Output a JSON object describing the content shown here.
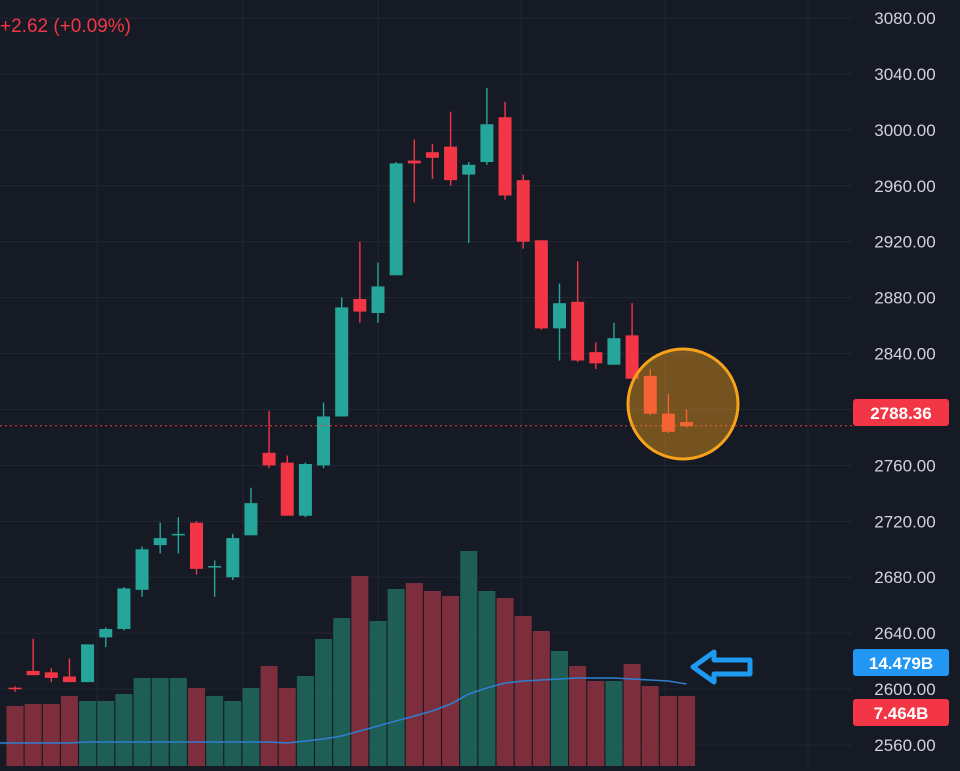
{
  "header": {
    "change_text": "+2.62 (+0.09%)"
  },
  "colors": {
    "background": "#161a25",
    "grid": "#232735",
    "up": "#26a69a",
    "down": "#f23645",
    "volume_up": "#1e5e55",
    "volume_down": "#7d2e3c",
    "ma_line": "#2f7fd0",
    "price_line": "#f23645",
    "annotation_circle": "#f7a21b",
    "annotation_arrow": "#1e9bf0",
    "volume_ma_tag": "#2196f3",
    "volume_tag": "#f23645",
    "axis_text": "#d1d4dc"
  },
  "chart_data": {
    "type": "candlestick",
    "y_axis_side": "right",
    "ylim": [
      2545,
      3090
    ],
    "y_ticks": [
      "3080.00",
      "3040.00",
      "3000.00",
      "2960.00",
      "2920.00",
      "2880.00",
      "2840.00",
      "2800.00",
      "2760.00",
      "2720.00",
      "2680.00",
      "2640.00",
      "2600.00",
      "2560.00"
    ],
    "last_price": "2788.36",
    "volume_ma_label": "14.479B",
    "volume_label": "7.464B",
    "candles": [
      {
        "o": 2601,
        "h": 2602,
        "l": 2598,
        "c": 2600
      },
      {
        "o": 2613,
        "h": 2636,
        "l": 2610,
        "c": 2610
      },
      {
        "o": 2612,
        "h": 2615,
        "l": 2605,
        "c": 2608
      },
      {
        "o": 2609,
        "h": 2622,
        "l": 2606,
        "c": 2605
      },
      {
        "o": 2605,
        "h": 2629,
        "l": 2606,
        "c": 2632
      },
      {
        "o": 2637,
        "h": 2644,
        "l": 2630,
        "c": 2643
      },
      {
        "o": 2643,
        "h": 2673,
        "l": 2642,
        "c": 2672
      },
      {
        "o": 2671,
        "h": 2702,
        "l": 2666,
        "c": 2700
      },
      {
        "o": 2703,
        "h": 2719,
        "l": 2697,
        "c": 2708
      },
      {
        "o": 2710,
        "h": 2723,
        "l": 2697,
        "c": 2711
      },
      {
        "o": 2719,
        "h": 2720,
        "l": 2682,
        "c": 2686
      },
      {
        "o": 2687,
        "h": 2692,
        "l": 2666,
        "c": 2688
      },
      {
        "o": 2680,
        "h": 2711,
        "l": 2678,
        "c": 2708
      },
      {
        "o": 2710,
        "h": 2744,
        "l": 2710,
        "c": 2733
      },
      {
        "o": 2769,
        "h": 2799,
        "l": 2758,
        "c": 2760
      },
      {
        "o": 2762,
        "h": 2767,
        "l": 2724,
        "c": 2724
      },
      {
        "o": 2724,
        "h": 2762,
        "l": 2723,
        "c": 2761
      },
      {
        "o": 2760,
        "h": 2805,
        "l": 2758,
        "c": 2795
      },
      {
        "o": 2795,
        "h": 2880,
        "l": 2795,
        "c": 2873
      },
      {
        "o": 2879,
        "h": 2920,
        "l": 2862,
        "c": 2870
      },
      {
        "o": 2869,
        "h": 2905,
        "l": 2862,
        "c": 2888
      },
      {
        "o": 2896,
        "h": 2977,
        "l": 2896,
        "c": 2976
      },
      {
        "o": 2978,
        "h": 2993,
        "l": 2948,
        "c": 2976
      },
      {
        "o": 2984,
        "h": 2990,
        "l": 2965,
        "c": 2980
      },
      {
        "o": 2988,
        "h": 3013,
        "l": 2960,
        "c": 2964
      },
      {
        "o": 2968,
        "h": 2977,
        "l": 2919,
        "c": 2975
      },
      {
        "o": 2977,
        "h": 3030,
        "l": 2975,
        "c": 3004
      },
      {
        "o": 3009,
        "h": 3020,
        "l": 2950,
        "c": 2953
      },
      {
        "o": 2964,
        "h": 2968,
        "l": 2915,
        "c": 2920
      },
      {
        "o": 2921,
        "h": 2921,
        "l": 2857,
        "c": 2858
      },
      {
        "o": 2858,
        "h": 2890,
        "l": 2835,
        "c": 2876
      },
      {
        "o": 2877,
        "h": 2906,
        "l": 2834,
        "c": 2835
      },
      {
        "o": 2841,
        "h": 2848,
        "l": 2829,
        "c": 2833
      },
      {
        "o": 2832,
        "h": 2862,
        "l": 2832,
        "c": 2851
      },
      {
        "o": 2853,
        "h": 2876,
        "l": 2822,
        "c": 2822
      },
      {
        "o": 2824,
        "h": 2829,
        "l": 2796,
        "c": 2797
      },
      {
        "o": 2797,
        "h": 2811,
        "l": 2783,
        "c": 2784
      },
      {
        "o": 2791,
        "h": 2800,
        "l": 2787,
        "c": 2788
      }
    ],
    "volume_heights": [
      60,
      62,
      62,
      70,
      65,
      65,
      72,
      88,
      88,
      88,
      78,
      70,
      65,
      78,
      100,
      78,
      90,
      127,
      148,
      190,
      145,
      177,
      183,
      175,
      170,
      215,
      175,
      168,
      150,
      135,
      115,
      100,
      85,
      85,
      102,
      80,
      70,
      70
    ],
    "volume_ma": [
      23,
      23,
      23,
      23,
      24,
      24,
      24,
      24,
      24,
      24,
      24,
      24,
      24,
      24,
      24,
      23,
      25,
      27,
      30,
      35,
      40,
      45,
      50,
      55,
      62,
      72,
      78,
      83,
      85,
      86,
      87,
      88,
      88,
      88,
      87,
      86,
      85,
      82
    ]
  }
}
